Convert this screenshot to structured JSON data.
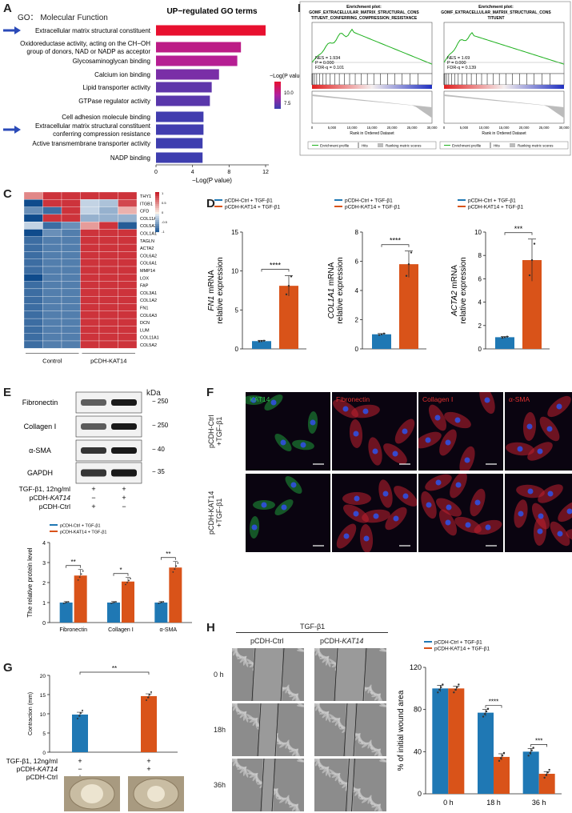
{
  "panels": {
    "A": {
      "letter": "A",
      "header_left": "GO： Molecular Function",
      "title": "UP−regulated GO terms",
      "legend_title": "−Log(P value)",
      "legend_ticks": [
        "10.0",
        "7.5"
      ],
      "xlabel": "−Log(P value)"
    },
    "B": {
      "letter": "B",
      "plot1_title": "Enrichment plot:",
      "plot1_subtitle": "GOMF_EXTRACELLULAR_MATRIX_STRUCTURAL_CONS",
      "plot1_subtitle2": "TITUENT_CONFERRING_COMPRESSION_RESISTANCE",
      "plot1_stats": [
        "NES = 1.934",
        "P = 0.000",
        "FDR-q = 0.101"
      ],
      "plot2_title": "Enrichment plot:",
      "plot2_subtitle": "GOMF_EXTRACELLULAR_MATRIX_STRUCTURAL_CONS",
      "plot2_subtitle2": "TITUENT",
      "plot2_stats": [
        "NES = 1.69",
        "P = 0.000",
        "FDR-q = 0.139"
      ],
      "legend": [
        "Enrichment profile",
        "Hits",
        "Ranking metric scores"
      ],
      "x_axis_label": "Rank in Ordered Dataset",
      "x_ticks": [
        "0",
        "5,000",
        "10,000",
        "15,000",
        "20,000",
        "25,000",
        "30,000"
      ]
    },
    "C": {
      "letter": "C",
      "genes": [
        "THY1",
        "ITGB1",
        "CFD",
        "COL11A2",
        "COL5A3",
        "COL1A1",
        "TAGLN",
        "ACTA2",
        "COL6A2",
        "COL6A1",
        "MMP14",
        "LOX",
        "FAP",
        "COL3A1",
        "COL1A2",
        "FN1",
        "COL6A3",
        "DCN",
        "LUM",
        "COL11A1",
        "COL5A2"
      ],
      "group_control": "Control",
      "group_treated": "pCDH-KAT14",
      "scale_ticks": [
        "1",
        "0.5",
        "0",
        "-0.5",
        "-1"
      ]
    },
    "D": {
      "letter": "D",
      "legend_ctrl": "pCDH-Ctrl + TGF-β1",
      "legend_kat": "pCDH-KAT14 + TGF-β1",
      "ylabel_suffix": "relative expression"
    },
    "E": {
      "letter": "E",
      "kda": "kDa",
      "blots": [
        {
          "name": "Fibronectin",
          "kda": "250"
        },
        {
          "name": "Collagen Ⅰ",
          "kda": "250"
        },
        {
          "name": "α-SMA",
          "kda": "40"
        },
        {
          "name": "GAPDH",
          "kda": "35"
        }
      ],
      "conditions": [
        {
          "label": "TGF-β1, 12ng/ml",
          "v1": "+",
          "v2": "+"
        },
        {
          "label": "pCDH-KAT14",
          "v1": "−",
          "v2": "+"
        },
        {
          "label": "pCDH-Ctrl",
          "v1": "+",
          "v2": "−"
        }
      ],
      "legend_ctrl": "pCDH-Ctrl + TGF-β1",
      "legend_kat": "pCDH-KAT14 + TGF-β1",
      "ylabel": "The relative protein level"
    },
    "F": {
      "letter": "F",
      "columns": [
        "KAT14",
        "Fibronectin",
        "Collagen Ⅰ",
        "α-SMA"
      ],
      "rows": [
        "pCDH-Ctrl +TGF-β1",
        "pCDH-KAT14 +TGF-β1"
      ]
    },
    "G": {
      "letter": "G",
      "ylabel": "Contraction (mm)",
      "sig": "**",
      "conditions": [
        {
          "label": "TGF-β1, 12ng/ml",
          "v1": "+",
          "v2": "+"
        },
        {
          "label": "pCDH-KAT14",
          "v1": "−",
          "v2": "+"
        },
        {
          "label": "pCDH-Ctrl",
          "v1": "+",
          "v2": "−"
        }
      ]
    },
    "H": {
      "letter": "H",
      "treatment": "TGF-β1",
      "col_ctrl": "pCDH-Ctrl",
      "col_kat": "pCDH-KAT14",
      "rows": [
        "0 h",
        "18h",
        "36h"
      ],
      "legend_ctrl": "pCDH-Ctrl + TGF-β1",
      "legend_kat": "pCDH-KAT14 + TGF-β1",
      "ylabel": "% of initial wound area"
    }
  },
  "colors": {
    "ctrl": "#1f78b4",
    "kat": "#d95319",
    "go_high": "#e8102f",
    "go_low": "#3b3fb0"
  },
  "chart_data": [
    {
      "id": "A",
      "type": "bar",
      "orientation": "horizontal",
      "title": "UP−regulated GO terms",
      "xlabel": "−Log(P value)",
      "xlim": [
        0,
        12
      ],
      "xticks": [
        0,
        4,
        8,
        12
      ],
      "categories": [
        "Extracellular matrix structural constituent",
        "Oxidoreductase activity, acting on the CH−OH group of donors, NAD or NADP as acceptor",
        "Glycosaminoglycan binding",
        "Calcium ion binding",
        "Lipid transporter activity",
        "GTPase regulator activity",
        "Cell adhesion molecule binding",
        "Extracellular matrix structural constituent conferring compression resistance",
        "Active transmembrane transporter activity",
        "NADP binding"
      ],
      "values": [
        12.0,
        9.3,
        8.9,
        6.9,
        6.1,
        5.9,
        5.2,
        5.2,
        5.1,
        5.1
      ],
      "highlighted": [
        0,
        7
      ]
    },
    {
      "id": "D1",
      "type": "bar",
      "ylabel": "FN1 mRNA",
      "ylim": [
        0,
        15
      ],
      "yticks": [
        0,
        5,
        10,
        15
      ],
      "categories": [
        "pCDH-Ctrl + TGF-β1",
        "pCDH-KAT14 + TGF-β1"
      ],
      "values": [
        1.0,
        8.1
      ],
      "errors": [
        0.1,
        1.3
      ],
      "points": [
        [
          0.95,
          1.0,
          1.05
        ],
        [
          7.0,
          8.1,
          9.3
        ]
      ],
      "sig": "****"
    },
    {
      "id": "D2",
      "type": "bar",
      "ylabel": "COL1A1 mRNA",
      "ylim": [
        0,
        8
      ],
      "yticks": [
        0,
        2,
        4,
        6,
        8
      ],
      "categories": [
        "pCDH-Ctrl + TGF-β1",
        "pCDH-KAT14 + TGF-β1"
      ],
      "values": [
        1.0,
        5.8
      ],
      "errors": [
        0.05,
        0.9
      ],
      "points": [
        [
          0.95,
          1.0,
          1.05
        ],
        [
          5.0,
          5.8,
          6.6
        ]
      ],
      "sig": "****"
    },
    {
      "id": "D3",
      "type": "bar",
      "ylabel": "ACTA2 mRNA",
      "ylim": [
        0,
        10
      ],
      "yticks": [
        0,
        2,
        4,
        6,
        8,
        10
      ],
      "categories": [
        "pCDH-Ctrl + TGF-β1",
        "pCDH-KAT14 + TGF-β1"
      ],
      "values": [
        1.0,
        7.6
      ],
      "errors": [
        0.05,
        1.8
      ],
      "points": [
        [
          0.95,
          1.0,
          1.05
        ],
        [
          6.3,
          7.6,
          9.0
        ]
      ],
      "sig": "***"
    },
    {
      "id": "E",
      "type": "bar",
      "ylabel": "The relative protein level",
      "ylim": [
        0,
        4
      ],
      "yticks": [
        0,
        1,
        2,
        3,
        4
      ],
      "categories": [
        "Fibronectin",
        "Collagen Ⅰ",
        "α-SMA"
      ],
      "series": [
        {
          "name": "pCDH-Ctrl + TGF-β1",
          "values": [
            1.0,
            1.0,
            1.0
          ],
          "errors": [
            0.05,
            0.05,
            0.05
          ]
        },
        {
          "name": "pCDH-KAT14 + TGF-β1",
          "values": [
            2.35,
            2.05,
            2.75
          ],
          "errors": [
            0.3,
            0.2,
            0.3
          ]
        }
      ],
      "sig": [
        "**",
        "*",
        "**"
      ]
    },
    {
      "id": "G",
      "type": "bar",
      "ylabel": "Contraction (mm)",
      "ylim": [
        0,
        20
      ],
      "yticks": [
        0,
        5,
        10,
        15,
        20
      ],
      "categories": [
        "pCDH-Ctrl",
        "pCDH-KAT14"
      ],
      "values": [
        9.8,
        14.6
      ],
      "errors": [
        0.6,
        0.6
      ],
      "sig": "**"
    },
    {
      "id": "H",
      "type": "bar",
      "ylabel": "% of initial wound area",
      "ylim": [
        0,
        120
      ],
      "yticks": [
        0,
        40,
        80,
        120
      ],
      "categories": [
        "0 h",
        "18 h",
        "36 h"
      ],
      "series": [
        {
          "name": "pCDH-Ctrl + TGF-β1",
          "values": [
            100,
            77,
            40
          ],
          "errors": [
            3,
            3,
            3
          ]
        },
        {
          "name": "pCDH-KAT14 + TGF-β1",
          "values": [
            100,
            35,
            19
          ],
          "errors": [
            2,
            3,
            2
          ]
        }
      ],
      "sig": [
        null,
        "****",
        "***"
      ]
    }
  ]
}
